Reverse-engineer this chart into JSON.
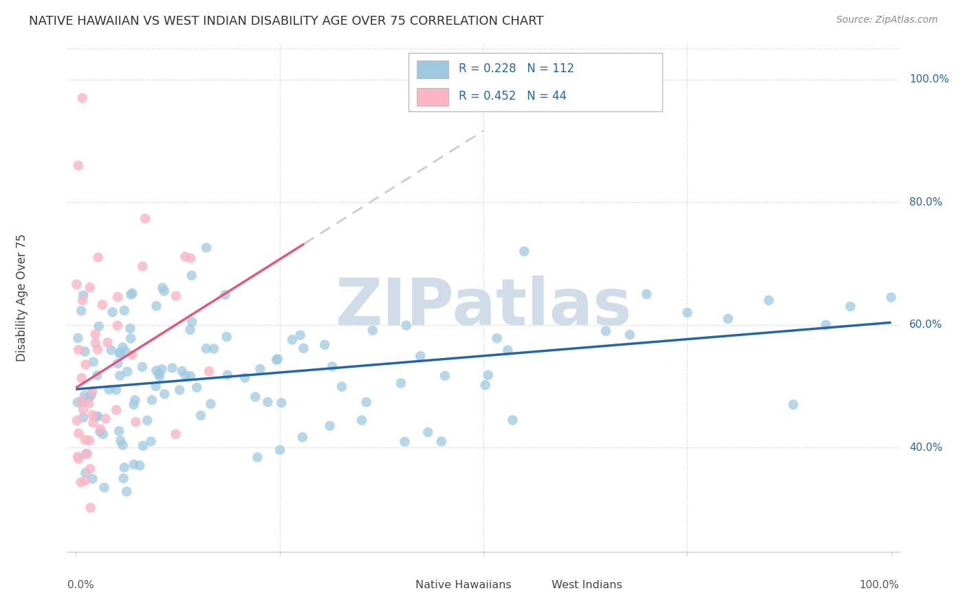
{
  "title": "NATIVE HAWAIIAN VS WEST INDIAN DISABILITY AGE OVER 75 CORRELATION CHART",
  "source": "Source: ZipAtlas.com",
  "ylabel": "Disability Age Over 75",
  "legend_label1": "Native Hawaiians",
  "legend_label2": "West Indians",
  "r1": 0.228,
  "n1": 112,
  "r2": 0.452,
  "n2": 44,
  "color_blue": "#9ecae1",
  "color_pink": "#fbb4c4",
  "color_line_blue": "#2166ac",
  "color_line_pink": "#e8567a",
  "color_title": "#333333",
  "color_source": "#888888",
  "color_ytick": "#2166ac",
  "color_grid": "#cccccc",
  "ylim_min": 0.23,
  "ylim_max": 1.06,
  "xlim_min": -0.01,
  "xlim_max": 1.01,
  "ytick_vals": [
    0.4,
    0.6,
    0.8,
    1.0
  ],
  "ytick_labels": [
    "40.0%",
    "60.0%",
    "80.0%",
    "100.0%"
  ],
  "watermark": "ZIPatlas",
  "watermark_color": "#d0dce8",
  "seed_blue": 77,
  "seed_pink": 33
}
